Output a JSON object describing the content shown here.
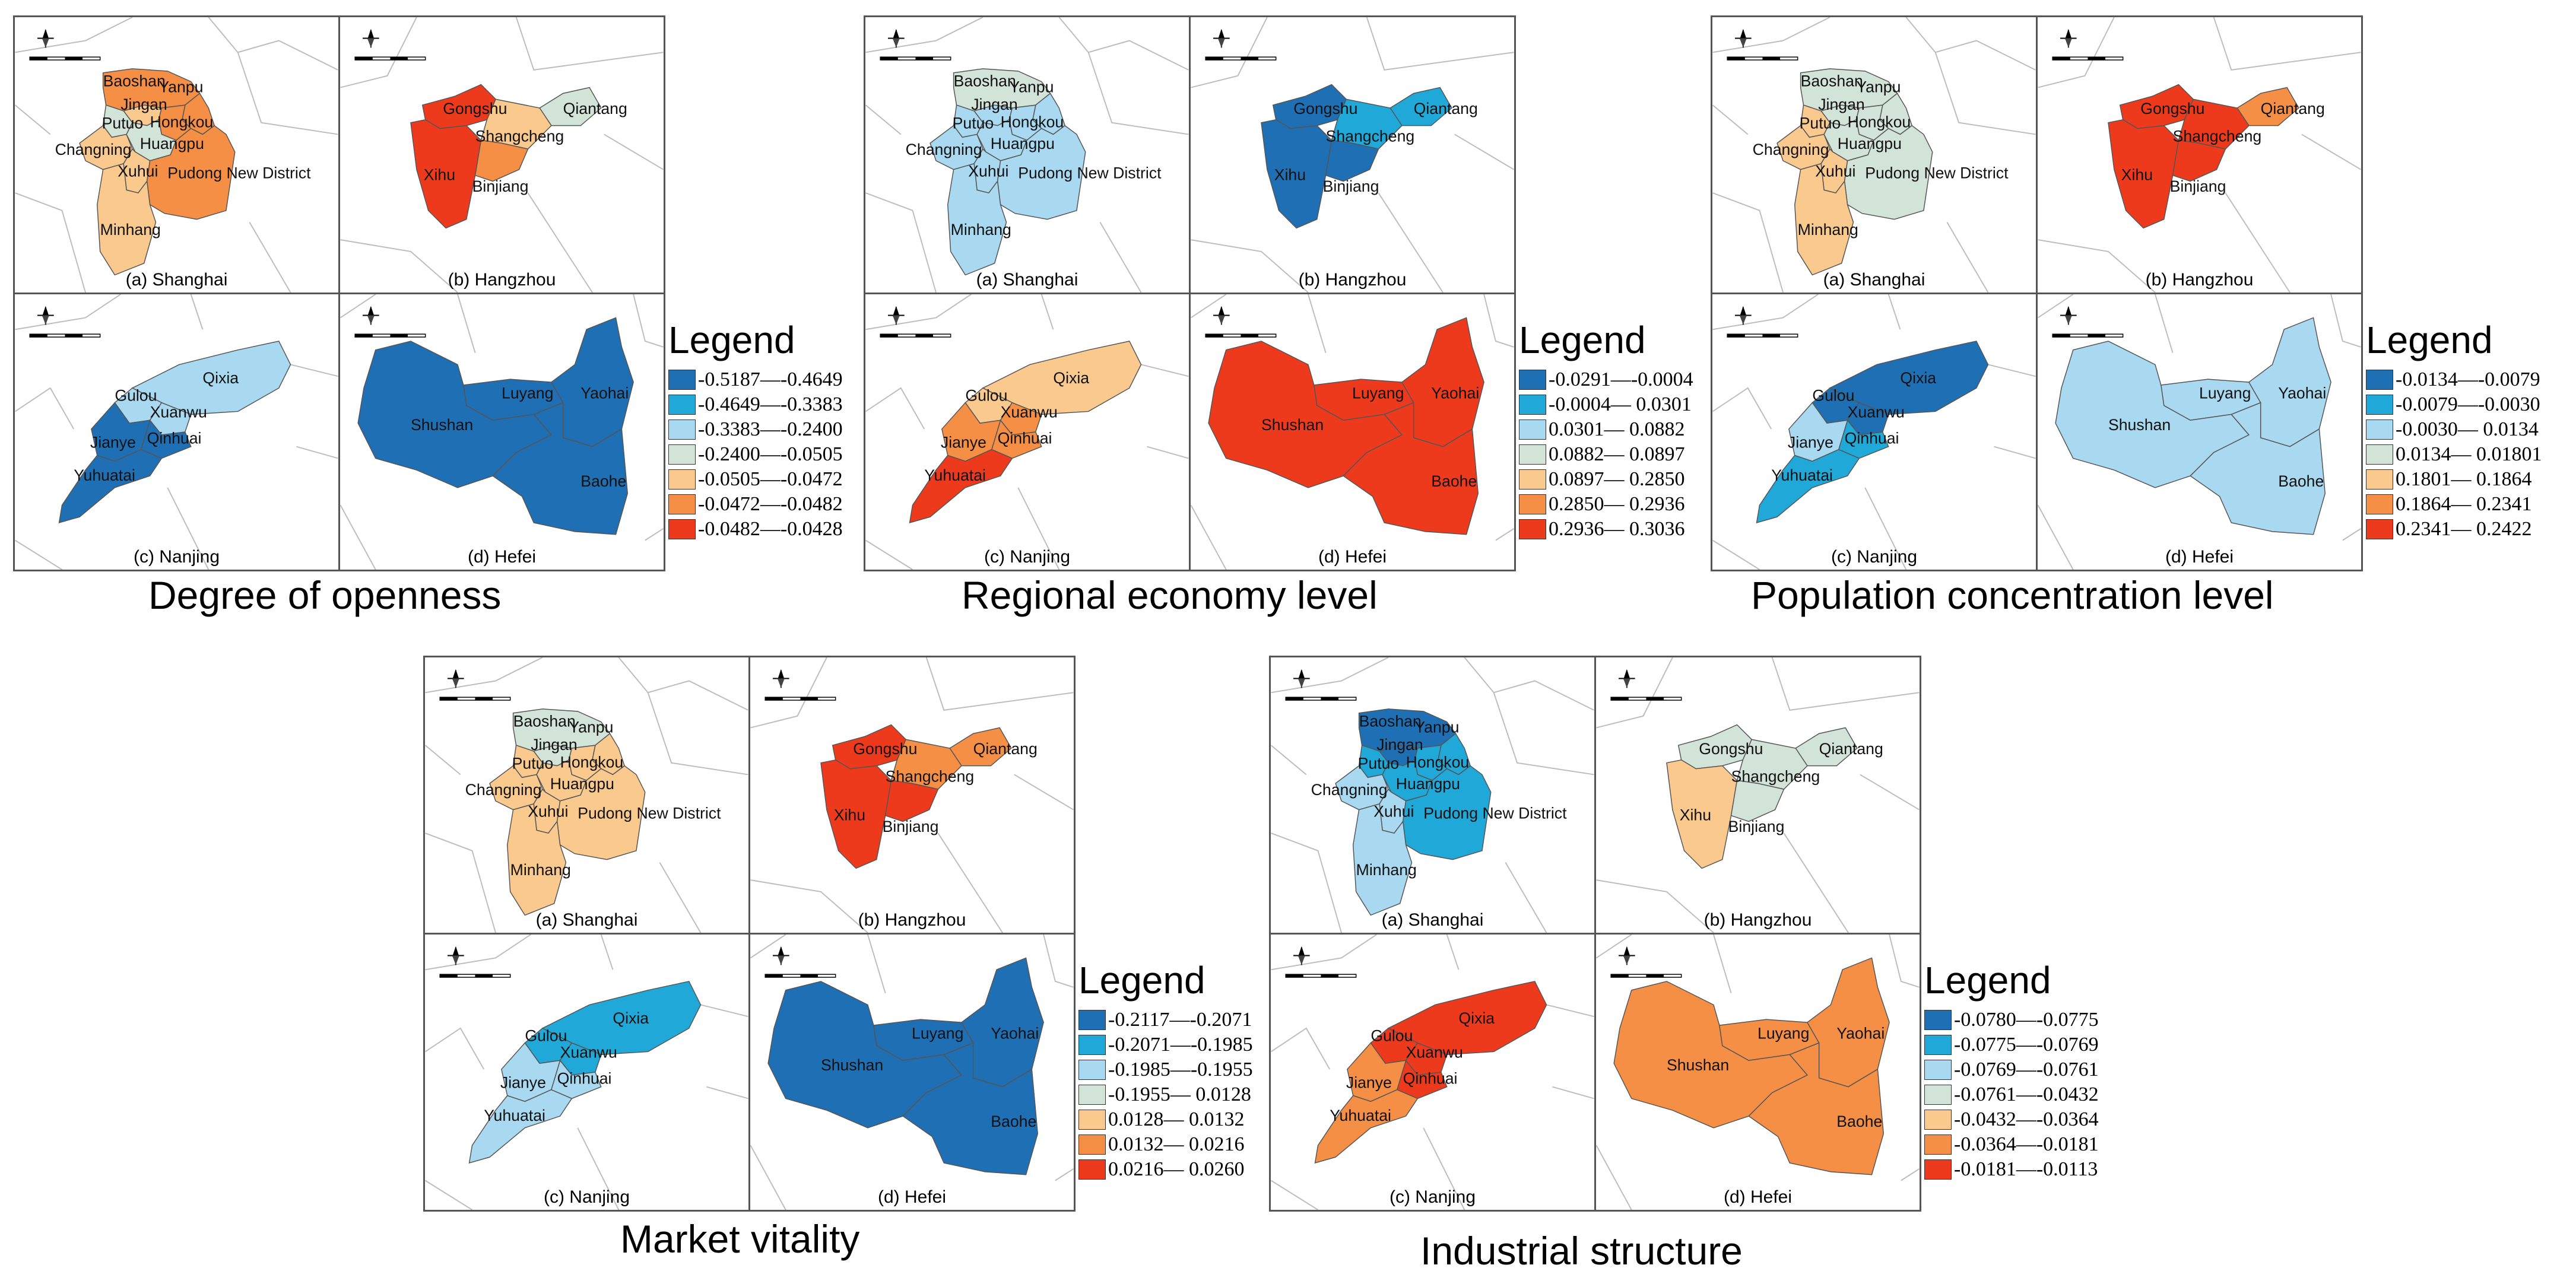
{
  "panel_captions": {
    "a": "(a) Shanghai",
    "b": "(b) Hangzhou",
    "c": "(c) Nanjing",
    "d": "(d) Hefei"
  },
  "district_labels": {
    "shanghai": [
      "Baoshan",
      "Yanpu",
      "Jingan",
      "Putuo",
      "Hongkou",
      "Changning",
      "Huangpu",
      "Xuhui",
      "Pudong New District",
      "Minhang"
    ],
    "hangzhou": [
      "Gongshu",
      "Qiantang",
      "Shangcheng",
      "Xihu",
      "Binjiang"
    ],
    "nanjing": [
      "Qixia",
      "Gulou",
      "Xuanwu",
      "Qinhuai",
      "Jianye",
      "Yuhuatai"
    ],
    "hefei": [
      "Luyang",
      "Yaohai",
      "Shushan",
      "Baohe"
    ]
  },
  "palette": [
    "#1f6fb4",
    "#1fa8d8",
    "#a8d9f0",
    "#d2e4d8",
    "#f9c98e",
    "#f58f45",
    "#ee3a1c"
  ],
  "legend_title": "Legend",
  "panels": [
    {
      "title": "Degree of openness",
      "legend": [
        "-0.5187—-0.4649",
        "-0.4649—-0.3383",
        "-0.3383—-0.2400",
        "-0.2400—-0.0505",
        "-0.0505—-0.0472",
        "-0.0472—-0.0482",
        "-0.0482—-0.0428"
      ],
      "classes": {
        "shanghai": {
          "Baoshan": 5,
          "Yanpu": 5,
          "Jingan": 4,
          "Putuo": 3,
          "Hongkou": 5,
          "Changning": 4,
          "Huangpu": 3,
          "Xuhui": 4,
          "Pudong New District": 5,
          "Minhang": 4
        },
        "hangzhou": {
          "Gongshu": 6,
          "Qiantang": 3,
          "Shangcheng": 4,
          "Xihu": 6,
          "Binjiang": 5
        },
        "nanjing": {
          "Qixia": 2,
          "Gulou": 2,
          "Xuanwu": 2,
          "Qinhuai": 0,
          "Jianye": 0,
          "Yuhuatai": 0
        },
        "hefei": {
          "Luyang": 0,
          "Yaohai": 0,
          "Shushan": 0,
          "Baohe": 0
        }
      }
    },
    {
      "title": "Regional economy level",
      "legend": [
        "-0.0291—-0.0004",
        "-0.0004— 0.0301",
        "0.0301— 0.0882",
        "0.0882— 0.0897",
        "0.0897— 0.2850",
        "0.2850— 0.2936",
        "0.2936— 0.3036"
      ],
      "classes": {
        "shanghai": {
          "Baoshan": 3,
          "Yanpu": 2,
          "Jingan": 2,
          "Putuo": 2,
          "Hongkou": 2,
          "Changning": 2,
          "Huangpu": 2,
          "Xuhui": 2,
          "Pudong New District": 2,
          "Minhang": 2
        },
        "hangzhou": {
          "Gongshu": 0,
          "Qiantang": 1,
          "Shangcheng": 1,
          "Xihu": 0,
          "Binjiang": 0
        },
        "nanjing": {
          "Qixia": 4,
          "Gulou": 4,
          "Xuanwu": 5,
          "Qinhuai": 5,
          "Jianye": 5,
          "Yuhuatai": 6
        },
        "hefei": {
          "Luyang": 6,
          "Yaohai": 6,
          "Shushan": 6,
          "Baohe": 6
        }
      }
    },
    {
      "title": "Population concentration level",
      "legend": [
        "-0.0134—-0.0079",
        "-0.0079—-0.0030",
        "-0.0030— 0.0134",
        "0.0134— 0.01801",
        "0.1801— 0.1864",
        "0.1864— 0.2341",
        "0.2341— 0.2422"
      ],
      "classes": {
        "shanghai": {
          "Baoshan": 3,
          "Yanpu": 3,
          "Jingan": 3,
          "Putuo": 4,
          "Hongkou": 3,
          "Changning": 4,
          "Huangpu": 3,
          "Xuhui": 4,
          "Pudong New District": 3,
          "Minhang": 4
        },
        "hangzhou": {
          "Gongshu": 6,
          "Qiantang": 5,
          "Shangcheng": 6,
          "Xihu": 6,
          "Binjiang": 6
        },
        "nanjing": {
          "Qixia": 0,
          "Gulou": 0,
          "Xuanwu": 0,
          "Qinhuai": 1,
          "Jianye": 2,
          "Yuhuatai": 1
        },
        "hefei": {
          "Luyang": 2,
          "Yaohai": 2,
          "Shushan": 2,
          "Baohe": 2
        }
      }
    },
    {
      "title": "Market vitality",
      "legend": [
        "-0.2117—-0.2071",
        "-0.2071—-0.1985",
        "-0.1985—-0.1955",
        "-0.1955— 0.0128",
        "0.0128— 0.0132",
        "0.0132— 0.0216",
        "0.0216— 0.0260"
      ],
      "classes": {
        "shanghai": {
          "Baoshan": 3,
          "Yanpu": 4,
          "Jingan": 3,
          "Putuo": 4,
          "Hongkou": 4,
          "Changning": 4,
          "Huangpu": 4,
          "Xuhui": 4,
          "Pudong New District": 4,
          "Minhang": 4
        },
        "hangzhou": {
          "Gongshu": 6,
          "Qiantang": 5,
          "Shangcheng": 5,
          "Xihu": 6,
          "Binjiang": 6
        },
        "nanjing": {
          "Qixia": 1,
          "Gulou": 1,
          "Xuanwu": 1,
          "Qinhuai": 2,
          "Jianye": 2,
          "Yuhuatai": 2
        },
        "hefei": {
          "Luyang": 0,
          "Yaohai": 0,
          "Shushan": 0,
          "Baohe": 0
        }
      }
    },
    {
      "title": "Industrial structure",
      "legend": [
        "-0.0780—-0.0775",
        "-0.0775—-0.0769",
        "-0.0769—-0.0761",
        "-0.0761—-0.0432",
        "-0.0432—-0.0364",
        "-0.0364—-0.0181",
        "-0.0181—-0.0113"
      ],
      "classes": {
        "shanghai": {
          "Baoshan": 0,
          "Yanpu": 1,
          "Jingan": 0,
          "Putuo": 1,
          "Hongkou": 1,
          "Changning": 2,
          "Huangpu": 1,
          "Xuhui": 2,
          "Pudong New District": 1,
          "Minhang": 2
        },
        "hangzhou": {
          "Gongshu": 3,
          "Qiantang": 3,
          "Shangcheng": 3,
          "Xihu": 4,
          "Binjiang": 3
        },
        "nanjing": {
          "Qixia": 6,
          "Gulou": 6,
          "Xuanwu": 6,
          "Qinhuai": 6,
          "Jianye": 5,
          "Yuhuatai": 5
        },
        "hefei": {
          "Luyang": 5,
          "Yaohai": 5,
          "Shushan": 5,
          "Baohe": 5
        }
      }
    }
  ]
}
